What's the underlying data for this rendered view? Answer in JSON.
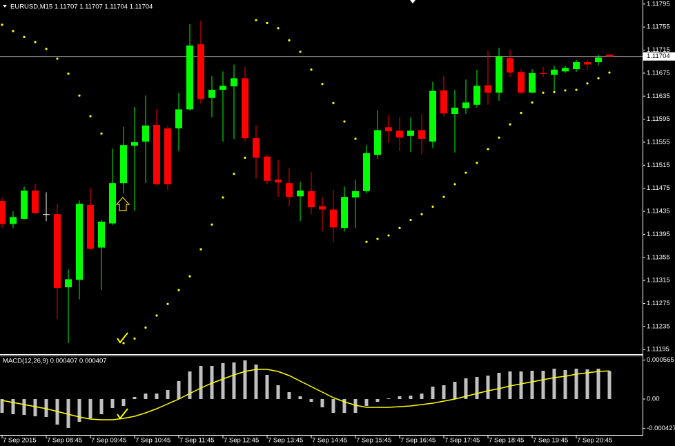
{
  "chart_data": [
    {
      "type": "candlestick",
      "title": "EURUSD,M15  1.11707 1.11707 1.11704 1.11704",
      "up_color": "#00ff00",
      "down_color": "#ff0000",
      "doji_color": "#ffffff",
      "open": [
        1.11453,
        1.11413,
        1.11422,
        1.11471,
        1.1143,
        1.1143,
        1.11303,
        1.11316,
        1.11446,
        1.11372,
        1.11414,
        1.11484,
        1.11549,
        1.11556,
        1.11585,
        1.11579,
        1.11579,
        1.11612,
        1.11725,
        1.11632,
        1.11646,
        1.11652,
        1.11666,
        1.11562,
        1.1153,
        1.1149,
        1.11484,
        1.11461,
        1.1147,
        1.11444,
        1.11438,
        1.11406,
        1.11459,
        1.1147,
        1.11533,
        1.11581,
        1.11575,
        1.11566,
        1.11576,
        1.11556,
        1.11645,
        1.11604,
        1.11614,
        1.1162,
        1.11654,
        1.11641,
        1.11701,
        1.11677,
        1.11641,
        1.11675,
        1.11672,
        1.11678,
        1.11682,
        1.11694,
        1.11694,
        1.11707
      ],
      "high": [
        1.11459,
        1.11435,
        1.11478,
        1.11483,
        1.11468,
        1.11448,
        1.11334,
        1.11454,
        1.11476,
        1.1142,
        1.11544,
        1.11582,
        1.11616,
        1.11636,
        1.11612,
        1.11584,
        1.1164,
        1.1176,
        1.11766,
        1.1167,
        1.11678,
        1.1169,
        1.11686,
        1.11584,
        1.11534,
        1.11524,
        1.1151,
        1.11486,
        1.11503,
        1.1146,
        1.11472,
        1.11478,
        1.1149,
        1.1155,
        1.1161,
        1.11603,
        1.11598,
        1.11598,
        1.11604,
        1.1166,
        1.1167,
        1.11646,
        1.11664,
        1.11681,
        1.11714,
        1.11719,
        1.11716,
        1.11682,
        1.11682,
        1.11686,
        1.11688,
        1.11688,
        1.11698,
        1.11698,
        1.11707,
        1.11707
      ],
      "low": [
        1.11406,
        1.11406,
        1.1142,
        1.1143,
        1.11418,
        1.11248,
        1.11206,
        1.11282,
        1.11368,
        1.11298,
        1.11411,
        1.11466,
        1.11436,
        1.11484,
        1.1148,
        1.11472,
        1.1154,
        1.1161,
        1.11622,
        1.11598,
        1.11556,
        1.1156,
        1.11556,
        1.11492,
        1.11482,
        1.1146,
        1.11444,
        1.11418,
        1.1143,
        1.114,
        1.11382,
        1.114,
        1.11406,
        1.11466,
        1.11526,
        1.11554,
        1.1154,
        1.11538,
        1.11534,
        1.11545,
        1.116,
        1.11537,
        1.11604,
        1.11615,
        1.1162,
        1.11627,
        1.11668,
        1.11639,
        1.1164,
        1.11668,
        1.1164,
        1.11675,
        1.11677,
        1.1168,
        1.11688,
        1.11704
      ],
      "close": [
        1.11413,
        1.11425,
        1.11471,
        1.11432,
        1.1143,
        1.11302,
        1.11317,
        1.11448,
        1.1137,
        1.11417,
        1.11484,
        1.1155,
        1.11555,
        1.11584,
        1.11482,
        1.11482,
        1.11612,
        1.11723,
        1.1163,
        1.11646,
        1.11653,
        1.11666,
        1.11562,
        1.11528,
        1.11488,
        1.11485,
        1.1146,
        1.11471,
        1.11442,
        1.11438,
        1.11407,
        1.1146,
        1.1147,
        1.11536,
        1.11576,
        1.11574,
        1.11563,
        1.11575,
        1.11561,
        1.11644,
        1.11605,
        1.11615,
        1.11624,
        1.11653,
        1.11641,
        1.11704,
        1.11676,
        1.11641,
        1.11675,
        1.11674,
        1.11681,
        1.11684,
        1.11694,
        1.1169,
        1.11702,
        1.11704
      ],
      "sar": {
        "color": "#ffff00",
        "values": [
          1.11759,
          1.11748,
          1.11738,
          1.11729,
          1.11717,
          1.117,
          1.11674,
          1.11636,
          1.116,
          1.1157,
          null,
          1.11206,
          1.11214,
          1.11233,
          1.11254,
          1.11274,
          1.11298,
          1.11322,
          1.11369,
          1.11412,
          1.11459,
          1.115,
          1.11528,
          1.11767,
          1.11762,
          1.11753,
          1.11732,
          1.11712,
          1.11681,
          1.11656,
          1.11623,
          1.11591,
          1.11561,
          1.11382,
          1.11387,
          1.11393,
          1.11406,
          1.1142,
          1.1143,
          1.11443,
          1.1146,
          1.11482,
          1.11502,
          1.11519,
          1.11543,
          1.11563,
          1.11586,
          1.11606,
          1.11624,
          1.11641,
          1.11642,
          1.11645,
          1.11646,
          1.11657,
          1.11666,
          1.11676
        ]
      },
      "current_price": 1.11704,
      "ylim": [
        1.11188,
        1.11802
      ],
      "yticks": [
        1.11795,
        1.11755,
        1.11715,
        1.11675,
        1.11635,
        1.11595,
        1.11555,
        1.11515,
        1.11475,
        1.11435,
        1.11395,
        1.11355,
        1.11315,
        1.11275,
        1.11235,
        1.11195
      ]
    },
    {
      "type": "bar",
      "title": "MACD(12,26,9) 0.000407 0.000407",
      "color": "#c0c0c0",
      "categories": [
        "7 Sep 2015",
        null,
        null,
        null,
        "7 Sep 08:45",
        null,
        null,
        null,
        "7 Sep 09:45",
        null,
        null,
        null,
        "7 Sep 10:45",
        null,
        null,
        null,
        "7 Sep 11:45",
        null,
        null,
        null,
        "7 Sep 12:45",
        null,
        null,
        null,
        "7 Sep 13:45",
        null,
        null,
        null,
        "7 Sep 14:45",
        null,
        null,
        null,
        "7 Sep 15:45",
        null,
        null,
        null,
        "7 Sep 16:45",
        null,
        null,
        null,
        "7 Sep 17:45",
        null,
        null,
        null,
        "7 Sep 18:45",
        null,
        null,
        null,
        "7 Sep 19:45",
        null,
        null,
        null,
        "7 Sep 20:45",
        null,
        null,
        null
      ],
      "values": [
        -0.0002,
        -0.00022,
        -0.00023,
        -0.00025,
        -0.00026,
        -0.00037,
        -0.00042,
        -0.00033,
        -0.00028,
        -0.00022,
        -0.00013,
        -0.0001,
        3e-05,
        8e-05,
        8e-05,
        0.00013,
        0.00026,
        0.0004,
        0.00048,
        0.00048,
        0.00052,
        0.00053,
        0.00056,
        0.0005,
        0.00035,
        0.0002,
        0.0001,
        4e-05,
        -4e-05,
        -0.00012,
        -0.0002,
        -0.0002,
        -0.0002,
        -0.0001,
        -4e-05,
        1e-05,
        4e-05,
        5e-05,
        8e-05,
        0.00018,
        0.0002,
        0.00025,
        0.0003,
        0.00032,
        0.00034,
        0.00038,
        0.0004,
        0.0004,
        0.00041,
        0.00041,
        0.00044,
        0.00042,
        0.00044,
        0.00043,
        0.00044,
        0.000407
      ],
      "signal": {
        "color": "#ffff00",
        "values": [
          -2e-05,
          -5e-05,
          -8e-05,
          -0.00011,
          -0.00014,
          -0.00018,
          -0.00022,
          -0.00026,
          -0.00029,
          -0.0003,
          -0.0003,
          -0.00028,
          -0.00025,
          -0.0002,
          -0.00014,
          -7e-05,
          0,
          8e-05,
          0.00016,
          0.00023,
          0.00029,
          0.00035,
          0.0004,
          0.00043,
          0.00043,
          0.0004,
          0.00034,
          0.00026,
          0.00018,
          0.0001,
          2e-05,
          -4e-05,
          -9e-05,
          -0.00012,
          -0.00012,
          -0.00012,
          -0.00011,
          -0.0001,
          -8e-05,
          -6e-05,
          -3e-05,
          0,
          4e-05,
          8e-05,
          0.00012,
          0.00015,
          0.00019,
          0.00022,
          0.00025,
          0.00028,
          0.00031,
          0.00033,
          0.00036,
          0.00038,
          0.0004,
          0.000407
        ]
      },
      "ylim": [
        -0.00052,
        0.00062
      ],
      "yticks": [
        {
          "value": 0.000565,
          "label": "0.000565"
        },
        {
          "value": 0,
          "label": "0.00"
        },
        {
          "value": -0.000427,
          "label": "-0.000427"
        }
      ]
    }
  ]
}
